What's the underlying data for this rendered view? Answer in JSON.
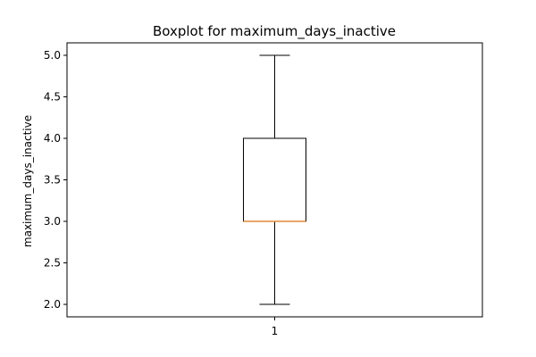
{
  "chart_data": {
    "type": "boxplot",
    "title": "Boxplot for maximum_days_inactive",
    "xlabel": "",
    "ylabel": "maximum_days_inactive",
    "categories": [
      "1"
    ],
    "boxes": [
      {
        "category": "1",
        "whisker_low": 2.0,
        "q1": 3.0,
        "median": 3.0,
        "q3": 4.0,
        "whisker_high": 5.0
      }
    ],
    "ylim": [
      1.85,
      5.15
    ],
    "yticks": [
      2.0,
      2.5,
      3.0,
      3.5,
      4.0,
      4.5,
      5.0
    ],
    "ytick_labels": [
      "2.0",
      "2.5",
      "3.0",
      "3.5",
      "4.0",
      "4.5",
      "5.0"
    ],
    "grid": false,
    "colors": {
      "box": "#000000",
      "median": "#e08a3c",
      "axes": "#000000",
      "background": "#ffffff"
    }
  }
}
